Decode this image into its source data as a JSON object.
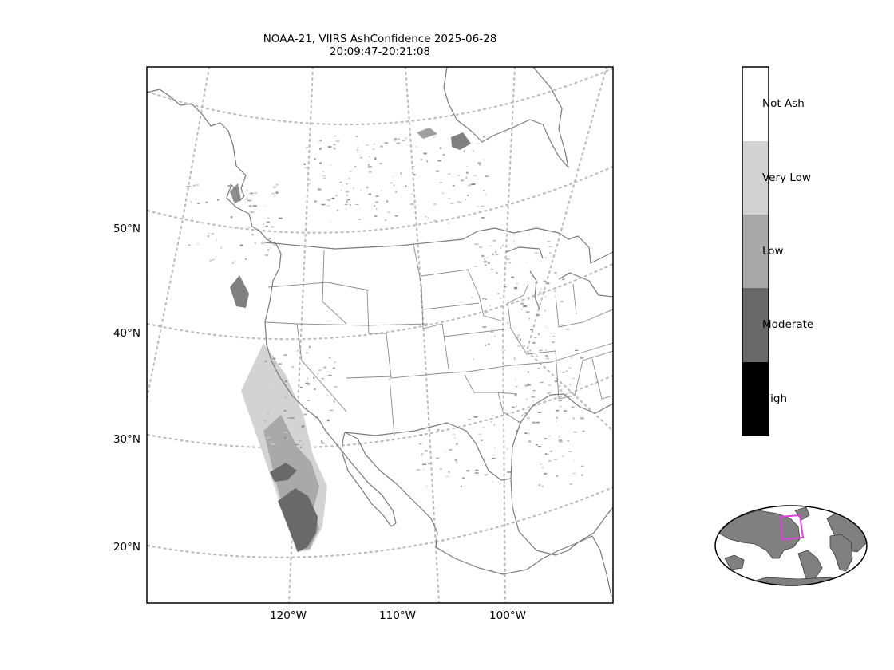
{
  "title": {
    "line1": "NOAA-21, VIIRS AshConfidence 2025-06-28",
    "line2": "20:09:47-20:21:08"
  },
  "latitude_labels": [
    "50°N",
    "40°N",
    "30°N",
    "20°N"
  ],
  "longitude_labels": [
    "120°W",
    "110°W",
    "100°W"
  ],
  "colorbar": {
    "categories": [
      {
        "label": "Not Ash",
        "color": "#ffffff"
      },
      {
        "label": "Very Low",
        "color": "#d3d3d3"
      },
      {
        "label": "Low",
        "color": "#a9a9a9"
      },
      {
        "label": "Moderate",
        "color": "#696969"
      },
      {
        "label": "High",
        "color": "#000000"
      }
    ]
  },
  "colors": {
    "coastline": "#7a7a7a",
    "graticule": "#bdbdbd",
    "inset_land": "#808080",
    "inset_box": "#e040e0"
  },
  "inset": {
    "projection": "world overview with magenta outline of the main map extent"
  }
}
